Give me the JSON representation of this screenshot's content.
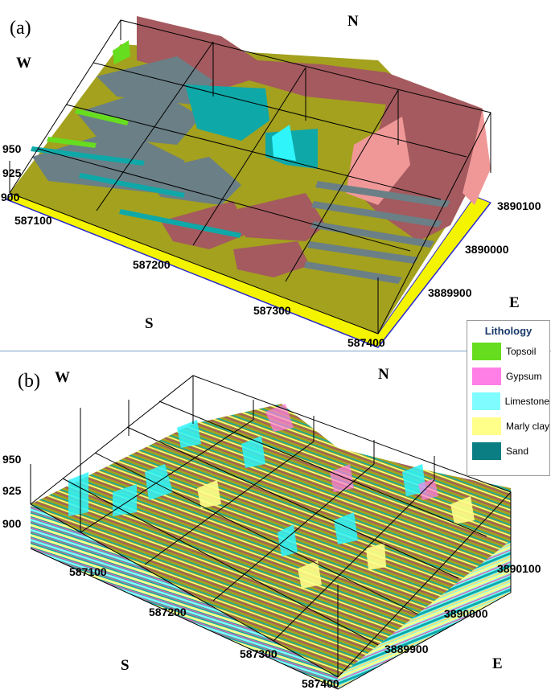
{
  "panel_a": {
    "label": "(a)",
    "directions": {
      "north": "N",
      "south": "S",
      "east": "E",
      "west": "W"
    },
    "elevation_ticks": [
      "950",
      "925",
      "900"
    ],
    "x_ticks": [
      "587100",
      "587200",
      "587300",
      "587400"
    ],
    "y_ticks": [
      "3890100",
      "3890000",
      "3889900"
    ]
  },
  "panel_b": {
    "label": "(b)",
    "directions": {
      "north": "N",
      "south": "S",
      "east": "E",
      "west": "W"
    },
    "elevation_ticks": [
      "950",
      "925",
      "900"
    ],
    "x_ticks": [
      "587100",
      "587200",
      "587300",
      "587400"
    ],
    "y_ticks": [
      "3890100",
      "3890000",
      "3889900"
    ]
  },
  "legend": {
    "title": "Lithology",
    "items": [
      {
        "name": "Topsoil",
        "color": "#66dd1e"
      },
      {
        "name": "Gypsum",
        "color": "#ff7fe6"
      },
      {
        "name": "Limestone",
        "color": "#7ffcff"
      },
      {
        "name": "Marly clay",
        "color": "#ffff8a"
      },
      {
        "name": "Sand",
        "color": "#0a7e82"
      }
    ]
  },
  "model_colors": {
    "olive": "#a3a11e",
    "red_brown": "#a45a5e",
    "salmon": "#f09898",
    "grey": "#6b7f86",
    "teal": "#0fa8a8",
    "cyan": "#2ff5fb",
    "yellow_base": "#f4f400"
  }
}
